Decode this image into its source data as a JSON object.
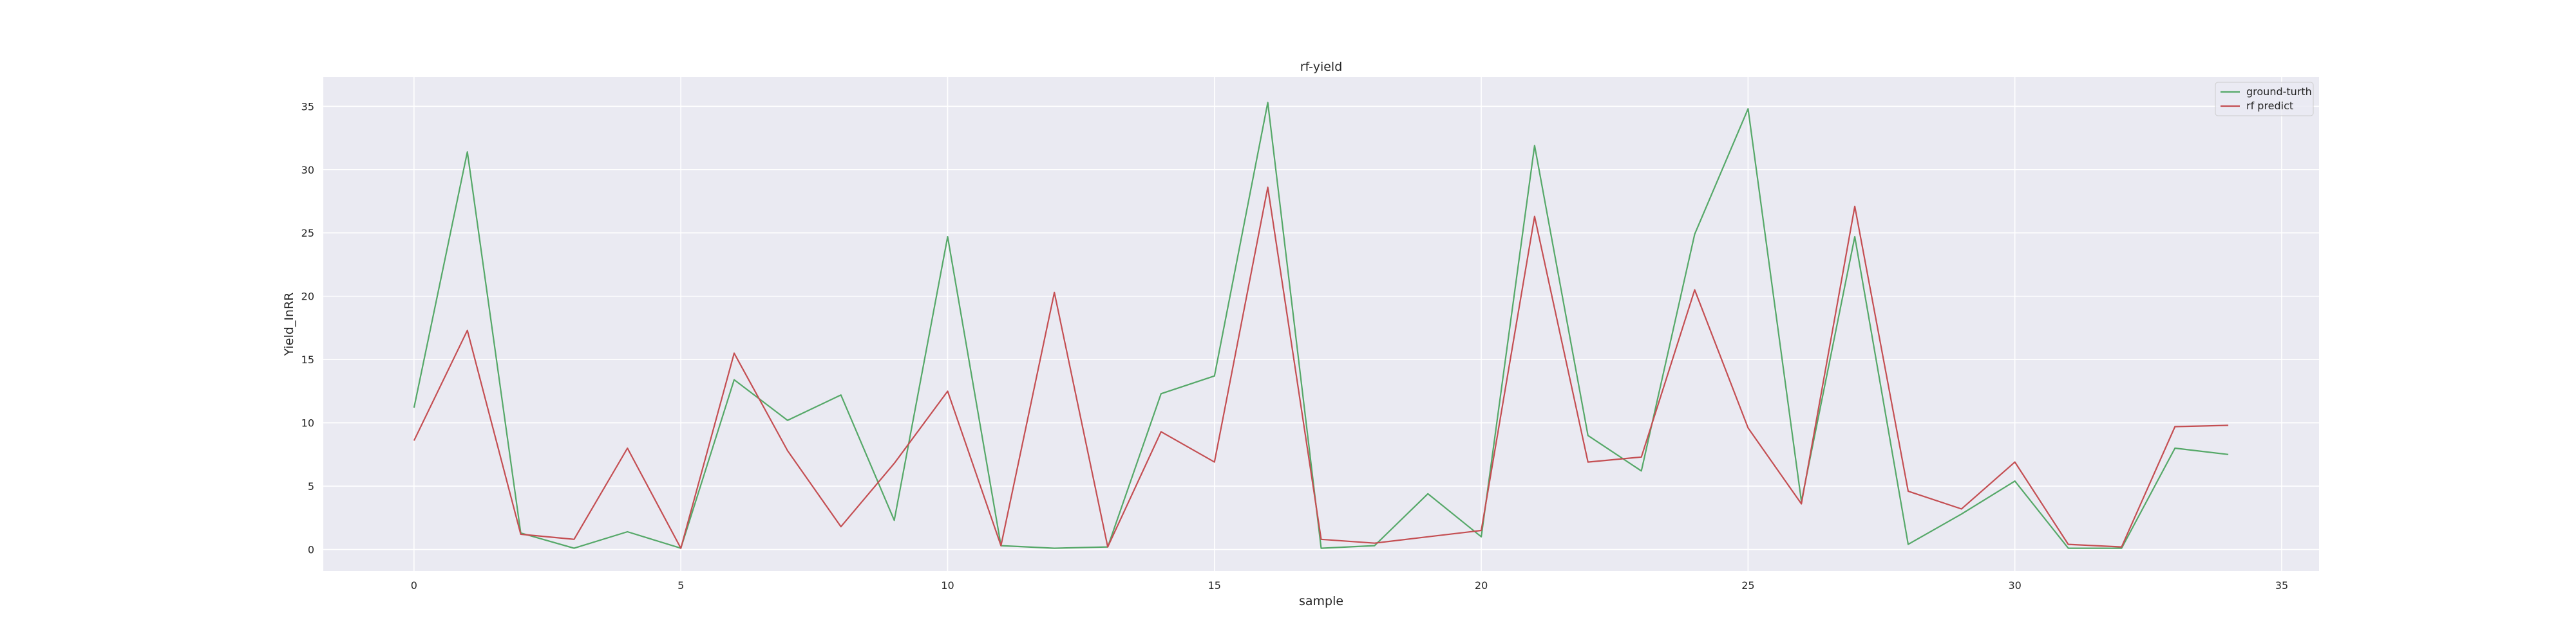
{
  "chart_data": {
    "type": "line",
    "title": "rf-yield",
    "xlabel": "sample",
    "ylabel": "Yield_InRR",
    "xlim": [
      -1.7,
      35.7
    ],
    "ylim": [
      -1.7,
      37.3
    ],
    "xticks": [
      0,
      5,
      10,
      15,
      20,
      25,
      30,
      35
    ],
    "yticks": [
      0,
      5,
      10,
      15,
      20,
      25,
      30,
      35
    ],
    "grid": true,
    "legend_position": "top-right",
    "x": [
      0,
      1,
      2,
      3,
      4,
      5,
      6,
      7,
      8,
      9,
      10,
      11,
      12,
      13,
      14,
      15,
      16,
      17,
      18,
      19,
      20,
      21,
      22,
      23,
      24,
      25,
      26,
      27,
      28,
      29,
      30,
      31,
      32,
      33,
      34
    ],
    "series": [
      {
        "name": "ground-turth",
        "color": "#55a868",
        "values": [
          11.2,
          31.4,
          1.3,
          0.1,
          1.4,
          0.1,
          13.4,
          10.2,
          12.2,
          2.3,
          24.7,
          0.3,
          0.1,
          0.2,
          12.3,
          13.7,
          35.3,
          0.1,
          0.3,
          4.4,
          1.0,
          31.9,
          9.0,
          6.2,
          24.9,
          34.8,
          3.8,
          24.7,
          0.4,
          2.8,
          5.4,
          0.1,
          0.1,
          8.0,
          7.5
        ]
      },
      {
        "name": "rf predict",
        "color": "#c44e52",
        "values": [
          8.6,
          17.3,
          1.2,
          0.8,
          8.0,
          0.1,
          15.5,
          7.8,
          1.8,
          6.8,
          12.5,
          0.3,
          20.3,
          0.2,
          9.3,
          6.9,
          28.6,
          0.8,
          0.5,
          1.0,
          1.5,
          26.3,
          6.9,
          7.3,
          20.5,
          9.6,
          3.6,
          27.1,
          4.6,
          3.2,
          6.9,
          0.4,
          0.2,
          9.7,
          9.8
        ]
      }
    ]
  }
}
